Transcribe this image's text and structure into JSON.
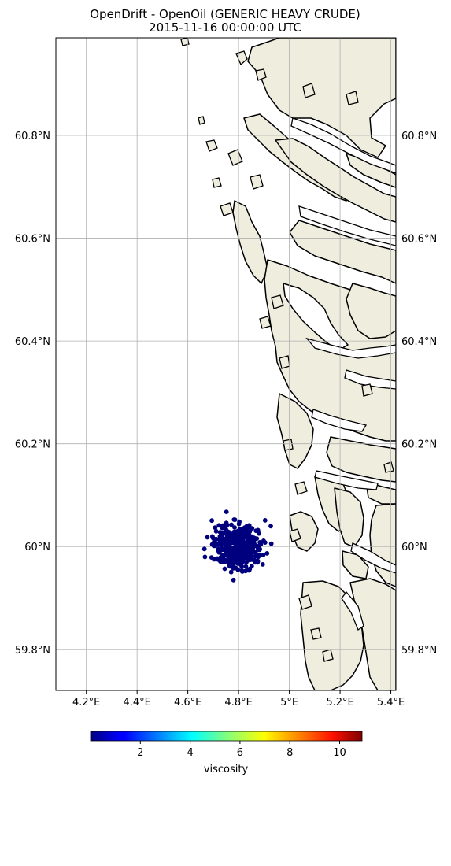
{
  "title": {
    "line1": "OpenDrift - OpenOil (GENERIC HEAVY CRUDE)",
    "line2": "2015-11-16 00:00:00 UTC"
  },
  "map": {
    "lon_range": [
      4.08,
      5.42
    ],
    "lat_range": [
      59.72,
      60.99
    ],
    "lon_ticks": [
      {
        "value": 4.2,
        "label": "4.2°E"
      },
      {
        "value": 4.4,
        "label": "4.4°E"
      },
      {
        "value": 4.6,
        "label": "4.6°E"
      },
      {
        "value": 4.8,
        "label": "4.8°E"
      },
      {
        "value": 5.0,
        "label": "5°E"
      },
      {
        "value": 5.2,
        "label": "5.2°E"
      },
      {
        "value": 5.4,
        "label": "5.4°E"
      }
    ],
    "lat_ticks": [
      {
        "value": 59.8,
        "label": "59.8°N"
      },
      {
        "value": 60.0,
        "label": "60°N"
      },
      {
        "value": 60.2,
        "label": "60.2°N"
      },
      {
        "value": 60.4,
        "label": "60.4°N"
      },
      {
        "value": 60.6,
        "label": "60.6°N"
      },
      {
        "value": 60.8,
        "label": "60.8°N"
      }
    ],
    "land_color": "#efedde",
    "coast_color": "#000000",
    "grid_color": "#b0b0b0",
    "particle_color": "#00007f",
    "particle_cloud_center": {
      "lon": 4.8,
      "lat": 60.0
    }
  },
  "colorbar": {
    "label": "viscosity",
    "colormap": "jet",
    "range": [
      0,
      10.9
    ],
    "ticks": [
      {
        "value": 2,
        "label": "2"
      },
      {
        "value": 4,
        "label": "4"
      },
      {
        "value": 6,
        "label": "6"
      },
      {
        "value": 8,
        "label": "8"
      },
      {
        "value": 10,
        "label": "10"
      }
    ]
  }
}
